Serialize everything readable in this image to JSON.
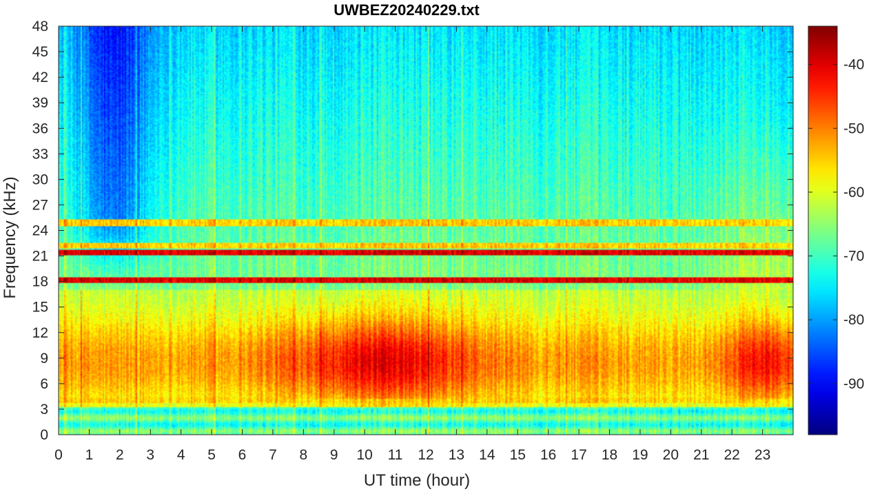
{
  "chart_data": {
    "type": "heatmap",
    "title": "UWBEZ20240229.txt",
    "xlabel": "UT time (hour)",
    "ylabel": "Frequency (kHz)",
    "xlim": [
      0,
      24
    ],
    "ylim": [
      0,
      48
    ],
    "x_ticks": [
      "0",
      "1",
      "2",
      "3",
      "4",
      "5",
      "6",
      "7",
      "8",
      "9",
      "10",
      "11",
      "12",
      "13",
      "14",
      "15",
      "16",
      "17",
      "18",
      "19",
      "20",
      "21",
      "22",
      "23"
    ],
    "y_ticks": [
      "0",
      "3",
      "6",
      "9",
      "12",
      "15",
      "18",
      "21",
      "24",
      "27",
      "30",
      "33",
      "36",
      "39",
      "42",
      "45",
      "48"
    ],
    "colorbar": {
      "colormap": "jet",
      "range": [
        -98,
        -34
      ],
      "ticks": [
        "-40",
        "-50",
        "-60",
        "-70",
        "-80",
        "-90"
      ]
    },
    "features": {
      "persistent_lines_khz": [
        18.2,
        21.4,
        24.9,
        22.2,
        4.0
      ],
      "broadband_band_khz": [
        3.5,
        17
      ],
      "peak_power_hours": [
        9,
        12
      ],
      "secondary_peak_hours": [
        22,
        24
      ],
      "low_noise_region": {
        "hours": [
          0.5,
          3
        ],
        "khz": [
          24,
          48
        ]
      }
    }
  }
}
